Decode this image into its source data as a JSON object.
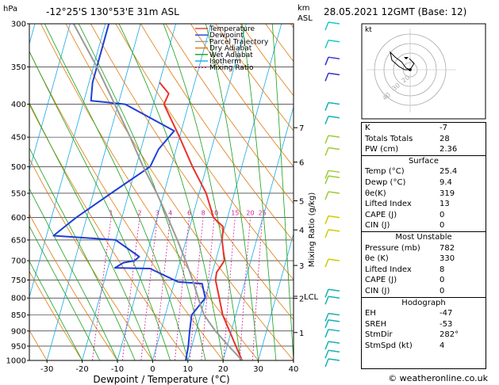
{
  "header": {
    "left": "-12°25'S  130°53'E  31m  ASL",
    "right": "28.05.2021  12GMT  (Base: 12)",
    "hpa": "hPa",
    "km": "km",
    "asl": "ASL"
  },
  "chart_data": {
    "type": "line",
    "title": "-12°25'S  130°53'E  31m  ASL",
    "xlabel": "Dewpoint / Temperature (°C)",
    "ylabel": "hPa",
    "right_axis_label": "Mixing Ratio (g/kg)",
    "xlim": [
      -35,
      40
    ],
    "ylim": [
      1000,
      300
    ],
    "x_ticks": [
      -30,
      -20,
      -10,
      0,
      10,
      20,
      30,
      40
    ],
    "pressure_ticks": [
      300,
      350,
      400,
      450,
      500,
      550,
      600,
      650,
      700,
      750,
      800,
      850,
      900,
      950,
      1000
    ],
    "km_ticks": [
      {
        "label": "7",
        "p": 435
      },
      {
        "label": "6",
        "p": 492
      },
      {
        "label": "5",
        "p": 565
      },
      {
        "label": "4",
        "p": 627
      },
      {
        "label": "3",
        "p": 712
      },
      {
        "label": "2",
        "p": 801
      },
      {
        "label": "1",
        "p": 905
      }
    ],
    "lcl": {
      "label": "LCL",
      "p": 795
    },
    "mixing_ratio_labels": [
      "1",
      "2",
      "3",
      "4",
      "6",
      "8",
      "10",
      "15",
      "20",
      "25"
    ],
    "mixing_ratio_values": [
      1,
      2,
      3,
      4,
      6,
      8,
      10,
      15,
      20,
      25
    ],
    "legend": [
      "Temperature",
      "Dewpoint",
      "Parcel Trajectory",
      "Dry Adiabat",
      "Wet Adiabat",
      "Isotherm",
      "Mixing Ratio"
    ],
    "legend_placement": "top-right of plot",
    "colors": {
      "temperature": "#e8332b",
      "dewpoint": "#1f3fd6",
      "parcel": "#9a9a9a",
      "dry_adiabat": "#e07a10",
      "wet_adiabat": "#18a018",
      "isotherm": "#19a9e6",
      "mixing_ratio": "#d0209a"
    },
    "series": [
      {
        "name": "Temperature",
        "points": [
          [
            1000,
            25.4
          ],
          [
            950,
            22.5
          ],
          [
            900,
            19.5
          ],
          [
            850,
            16.3
          ],
          [
            800,
            14
          ],
          [
            750,
            11.5
          ],
          [
            730,
            11.2
          ],
          [
            700,
            12.5
          ],
          [
            650,
            10.2
          ],
          [
            620,
            9.5
          ],
          [
            600,
            6
          ],
          [
            550,
            2
          ],
          [
            500,
            -4
          ],
          [
            450,
            -10
          ],
          [
            400,
            -17
          ],
          [
            385,
            -16.5
          ],
          [
            370,
            -20
          ]
        ]
      },
      {
        "name": "Dewpoint",
        "points": [
          [
            1000,
            9.4
          ],
          [
            950,
            9
          ],
          [
            900,
            8.2
          ],
          [
            850,
            7.5
          ],
          [
            800,
            10
          ],
          [
            760,
            8
          ],
          [
            755,
            1
          ],
          [
            720,
            -8
          ],
          [
            718,
            -18
          ],
          [
            705,
            -16
          ],
          [
            700,
            -13
          ],
          [
            690,
            -12
          ],
          [
            650,
            -20
          ],
          [
            640,
            -38
          ],
          [
            600,
            -33
          ],
          [
            550,
            -25
          ],
          [
            500,
            -16
          ],
          [
            470,
            -15
          ],
          [
            440,
            -12
          ],
          [
            400,
            -28
          ],
          [
            395,
            -38
          ],
          [
            370,
            -39
          ],
          [
            300,
            -39
          ]
        ]
      },
      {
        "name": "Parcel Trajectory",
        "points": [
          [
            1000,
            25.4
          ],
          [
            950,
            20.5
          ],
          [
            900,
            15.5
          ],
          [
            850,
            11
          ],
          [
            800,
            8
          ],
          [
            750,
            5
          ],
          [
            700,
            1.5
          ],
          [
            650,
            -2.5
          ],
          [
            600,
            -7
          ],
          [
            550,
            -12
          ],
          [
            500,
            -18
          ],
          [
            450,
            -24
          ],
          [
            400,
            -31
          ],
          [
            350,
            -39
          ],
          [
            300,
            -49
          ]
        ]
      }
    ]
  },
  "wind_barbs_colors": [
    "#19c8c8",
    "#3030d0",
    "#16b0b0",
    "#9acd32",
    "#d4c800"
  ],
  "hodograph": {
    "label": "kt",
    "ring_labels": [
      "20",
      "30",
      "40"
    ]
  },
  "indices": {
    "top": [
      {
        "label": "K",
        "value": "-7"
      },
      {
        "label": "Totals Totals",
        "value": "28"
      },
      {
        "label": "PW (cm)",
        "value": "2.36"
      }
    ],
    "surface_title": "Surface",
    "surface": [
      {
        "label": "Temp (°C)",
        "value": "25.4"
      },
      {
        "label": "Dewp (°C)",
        "value": "9.4"
      },
      {
        "label": "θe(K)",
        "value": "319"
      },
      {
        "label": "Lifted Index",
        "value": "13"
      },
      {
        "label": "CAPE (J)",
        "value": "0"
      },
      {
        "label": "CIN (J)",
        "value": "0"
      }
    ],
    "unstable_title": "Most Unstable",
    "unstable": [
      {
        "label": "Pressure (mb)",
        "value": "782"
      },
      {
        "label": "θe (K)",
        "value": "330"
      },
      {
        "label": "Lifted Index",
        "value": "8"
      },
      {
        "label": "CAPE (J)",
        "value": "0"
      },
      {
        "label": "CIN (J)",
        "value": "0"
      }
    ],
    "hodo_title": "Hodograph",
    "hodo": [
      {
        "label": "EH",
        "value": "-47"
      },
      {
        "label": "SREH",
        "value": "-53"
      },
      {
        "label": "StmDir",
        "value": "282°"
      },
      {
        "label": "StmSpd (kt)",
        "value": "4"
      }
    ]
  },
  "footer": "© weatheronline.co.uk"
}
